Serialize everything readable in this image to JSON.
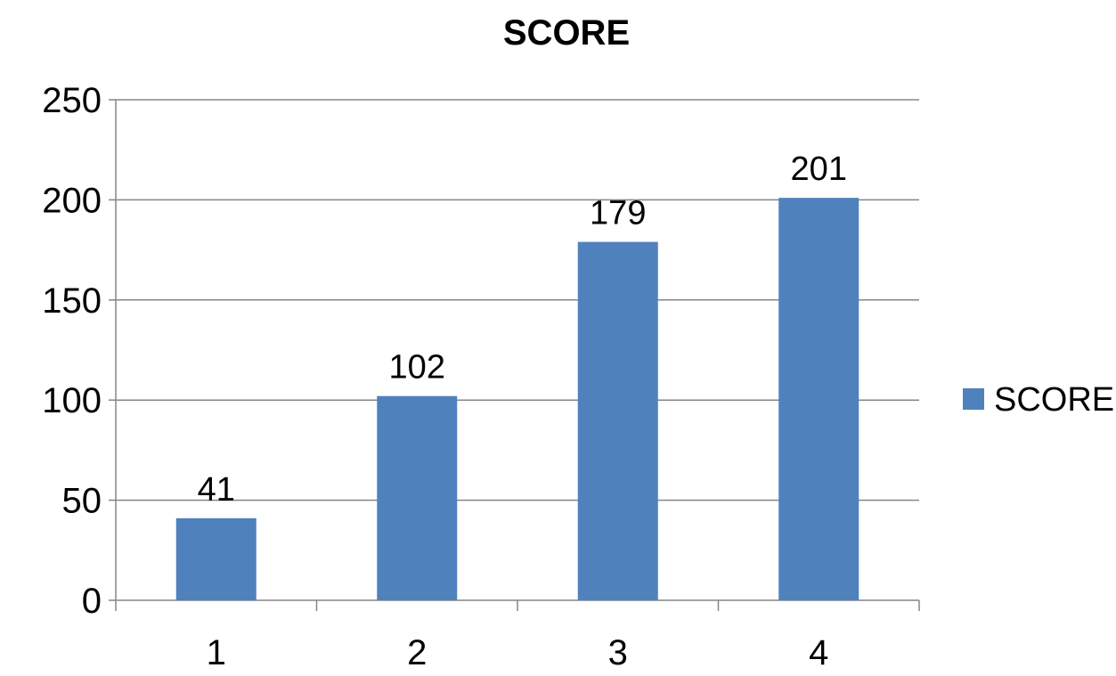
{
  "chart_data": {
    "type": "bar",
    "title": "SCORE",
    "xlabel": "",
    "ylabel": "",
    "categories": [
      "1",
      "2",
      "3",
      "4"
    ],
    "series": [
      {
        "name": "SCORE",
        "values": [
          41,
          102,
          179,
          201
        ],
        "color": "#4f81bd"
      }
    ],
    "ylim": [
      0,
      250
    ],
    "yticks": [
      0,
      50,
      100,
      150,
      200,
      250
    ],
    "data_labels": true,
    "grid": true,
    "legend_position": "right"
  }
}
